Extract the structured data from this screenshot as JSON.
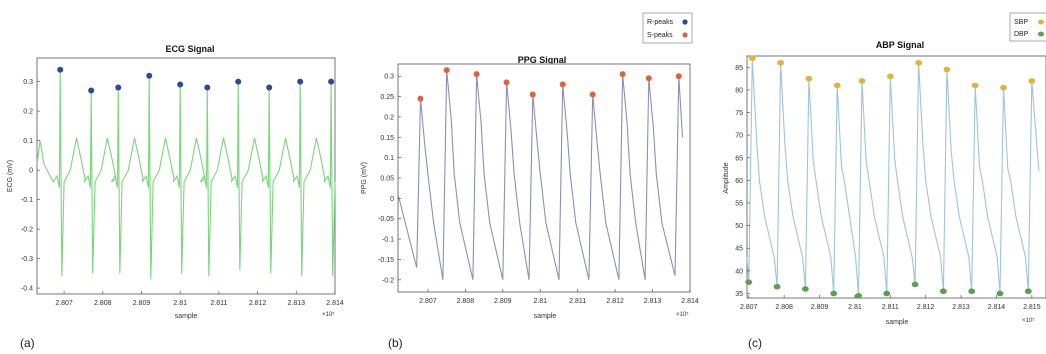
{
  "chart_data": [
    {
      "id": "ecg",
      "type": "line",
      "panel_label": "(a)",
      "title": "ECG Signal",
      "xlabel": "sample",
      "ylabel": "ECG (mV)",
      "x_exponent": "×10⁵",
      "xlim": [
        2.8063,
        2.814
      ],
      "ylim": [
        -0.42,
        0.38
      ],
      "xticks": [
        2.807,
        2.808,
        2.809,
        2.81,
        2.811,
        2.812,
        2.813,
        2.814
      ],
      "xticklabels": [
        "2.807",
        "2.808",
        "2.809",
        "2.81",
        "2.811",
        "2.812",
        "2.813",
        "2.814"
      ],
      "yticks": [
        -0.4,
        -0.3,
        -0.2,
        -0.1,
        0,
        0.1,
        0.2,
        0.3
      ],
      "yticklabels": [
        "-0.4",
        "-0.3",
        "-0.2",
        "-0.1",
        "0",
        "0.1",
        "0.2",
        "0.3"
      ],
      "grid": false,
      "line_color": "#79d679",
      "beat_x": [
        2.8069,
        2.8077,
        2.8084,
        2.8092,
        2.81,
        2.8107,
        2.8115,
        2.8123,
        2.8131,
        2.8139
      ],
      "peaks": {
        "name": "R-peaks",
        "color": "#2c4a9a",
        "x": [
          2.8069,
          2.8077,
          2.8084,
          2.8092,
          2.81,
          2.8107,
          2.8115,
          2.8123,
          2.8131,
          2.8139
        ],
        "y": [
          0.34,
          0.27,
          0.28,
          0.32,
          0.29,
          0.28,
          0.3,
          0.28,
          0.3,
          0.3
        ]
      },
      "trough_y": [
        -0.36,
        -0.35,
        -0.35,
        -0.37,
        -0.35,
        -0.36,
        -0.34,
        -0.35,
        -0.36,
        -0.36
      ]
    },
    {
      "id": "ppg",
      "type": "line",
      "panel_label": "(b)",
      "title": "PPG Signal",
      "xlabel": "sample",
      "ylabel": "PPG (mV)",
      "x_exponent": "×10⁵",
      "xlim": [
        2.8062,
        2.814
      ],
      "ylim": [
        -0.23,
        0.33
      ],
      "xticks": [
        2.807,
        2.808,
        2.809,
        2.81,
        2.811,
        2.812,
        2.813,
        2.814
      ],
      "xticklabels": [
        "2.807",
        "2.808",
        "2.809",
        "2.81",
        "2.811",
        "2.812",
        "2.813",
        "2.814"
      ],
      "yticks": [
        -0.2,
        -0.15,
        -0.1,
        -0.05,
        0,
        0.05,
        0.1,
        0.15,
        0.2,
        0.25,
        0.3
      ],
      "yticklabels": [
        "-0.2",
        "-0.15",
        "-0.1",
        "-0.05",
        "0",
        "0.05",
        "0.1",
        "0.15",
        "0.2",
        "0.25",
        "0.3"
      ],
      "grid": false,
      "line_color": "#8e8eb8",
      "legend": {
        "placement": "top-right",
        "entries": [
          {
            "label": "R-peaks",
            "color": "#2c4a9a"
          },
          {
            "label": "S-peaks",
            "color": "#d9663a"
          }
        ]
      },
      "peaks": {
        "name": "S-peaks",
        "color": "#d9663a",
        "x": [
          2.8068,
          2.8075,
          2.8083,
          2.8091,
          2.8098,
          2.8106,
          2.8114,
          2.8122,
          2.8129,
          2.8137
        ],
        "y": [
          0.245,
          0.315,
          0.305,
          0.285,
          0.255,
          0.28,
          0.255,
          0.305,
          0.295,
          0.3
        ]
      },
      "trough_x": [
        2.8062,
        2.8067,
        2.8074,
        2.8082,
        2.809,
        2.8097,
        2.8105,
        2.8113,
        2.8121,
        2.8128,
        2.8136
      ],
      "trough_y": [
        0.01,
        -0.17,
        -0.2,
        -0.2,
        -0.2,
        -0.2,
        -0.2,
        -0.2,
        -0.2,
        -0.2,
        -0.19
      ]
    },
    {
      "id": "abp",
      "type": "line",
      "panel_label": "(c)",
      "title": "ABP Signal",
      "xlabel": "sample",
      "ylabel": "Amplitude",
      "x_exponent": "×10⁵",
      "xlim": [
        2.80695,
        2.8154
      ],
      "ylim": [
        34,
        87.5
      ],
      "xticks": [
        2.807,
        2.808,
        2.809,
        2.81,
        2.811,
        2.812,
        2.813,
        2.814,
        2.815
      ],
      "xticklabels": [
        "2.807",
        "2.808",
        "2.809",
        "2.81",
        "2.811",
        "2.812",
        "2.813",
        "2.814",
        "2.815"
      ],
      "yticks": [
        35,
        40,
        45,
        50,
        55,
        60,
        65,
        70,
        75,
        80,
        85
      ],
      "yticklabels": [
        "35",
        "40",
        "45",
        "50",
        "55",
        "60",
        "65",
        "70",
        "75",
        "80",
        "85"
      ],
      "grid": false,
      "line_color": "#9ec4de",
      "legend": {
        "placement": "top-right",
        "entries": [
          {
            "label": "SBP",
            "color": "#e2b33a"
          },
          {
            "label": "DBP",
            "color": "#5aa04a"
          }
        ]
      },
      "sbp": {
        "name": "SBP",
        "color": "#e2b33a",
        "x": [
          2.8071,
          2.8079,
          2.8087,
          2.8095,
          2.8102,
          2.811,
          2.8118,
          2.8126,
          2.8134,
          2.8142,
          2.815
        ],
        "y": [
          87,
          86,
          82.5,
          81,
          82,
          83,
          86,
          84.5,
          81,
          80.5,
          82
        ]
      },
      "dbp": {
        "name": "DBP",
        "color": "#5aa04a",
        "x": [
          2.807,
          2.8078,
          2.8086,
          2.8094,
          2.8101,
          2.8109,
          2.8117,
          2.8125,
          2.8133,
          2.8141,
          2.8149
        ],
        "y": [
          37.5,
          36.5,
          36,
          35,
          34.5,
          35,
          37,
          35.5,
          35.5,
          35,
          35.5
        ]
      }
    }
  ]
}
